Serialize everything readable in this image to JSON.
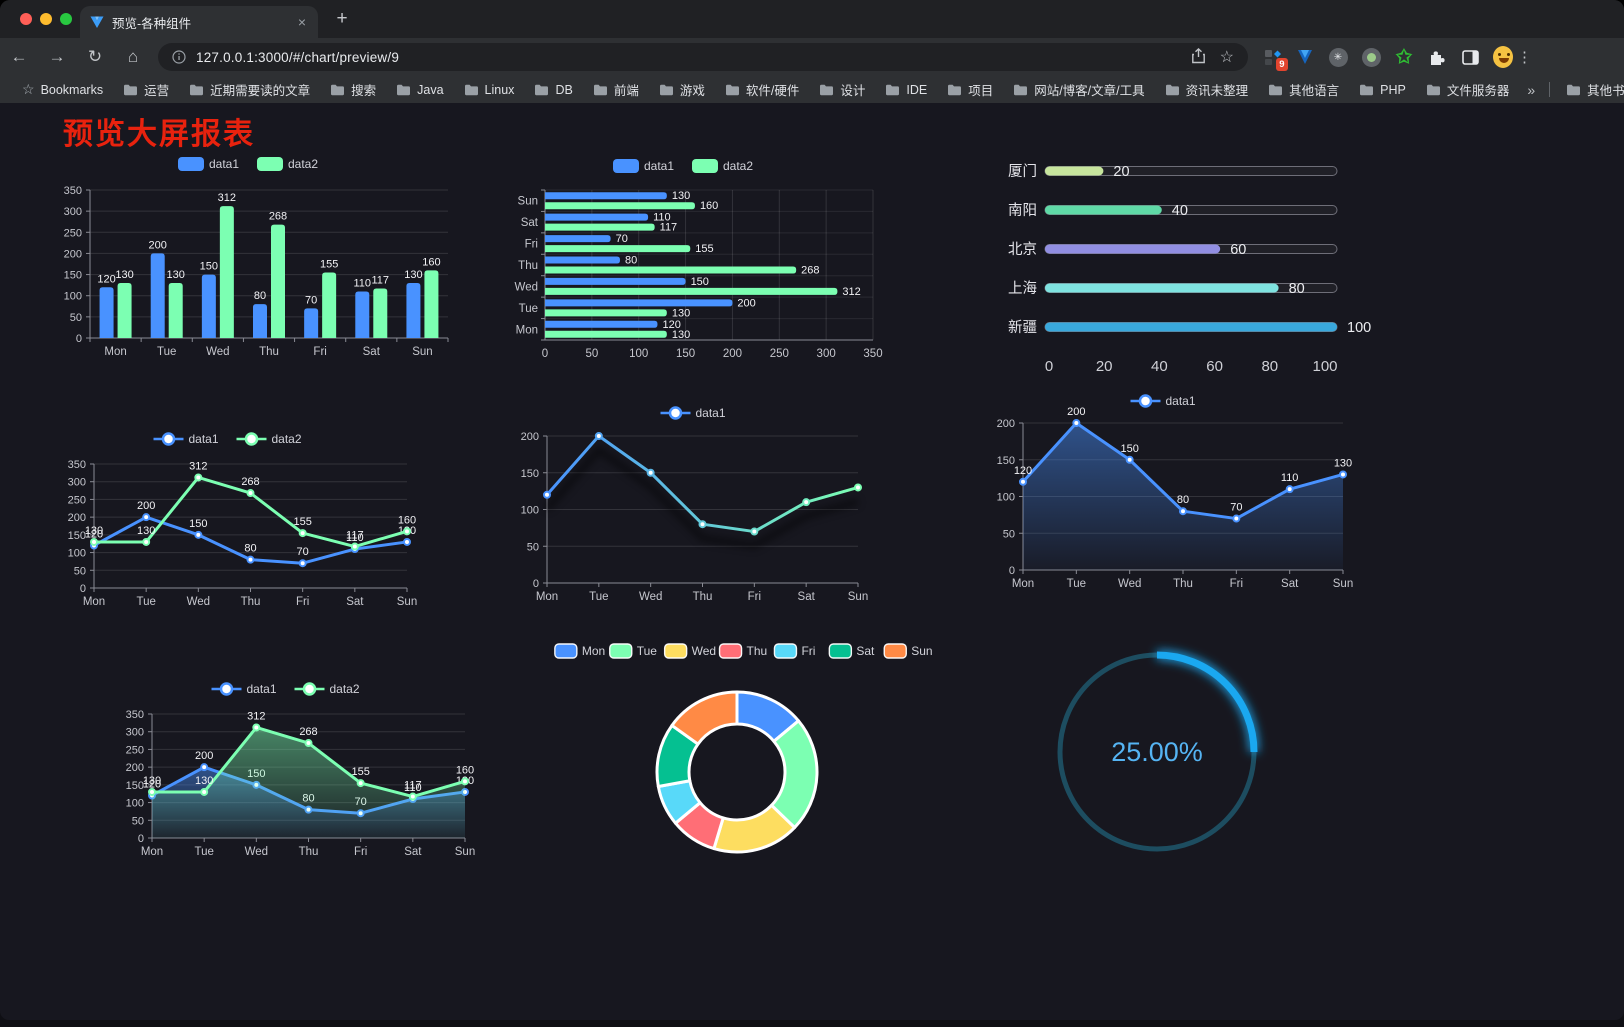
{
  "browser": {
    "traffic_lights": [
      "#ff5f57",
      "#febc2e",
      "#28c840"
    ],
    "tab": {
      "title": "预览-各种组件",
      "close": "×",
      "new_tab": "+"
    },
    "icons": {
      "back": "←",
      "forward": "→",
      "reload": "↻",
      "home": "⌂",
      "info": "i",
      "star": "☆",
      "dots": "⋮"
    },
    "address": {
      "url": "127.0.0.1:3000/#/chart/preview/9"
    },
    "extensions_badge": "9",
    "bookmarks_bar": {
      "root_label": "Bookmarks",
      "folders": [
        "运营",
        "近期需要读的文章",
        "搜索",
        "Java",
        "Linux",
        "DB",
        "前端",
        "游戏",
        "软件/硬件",
        "设计",
        "IDE",
        "项目",
        "网站/博客/文章/工具",
        "资讯未整理",
        "其他语言",
        "PHP",
        "文件服务器"
      ],
      "overflow": "»",
      "other_bookmarks": "其他书签"
    }
  },
  "page": {
    "title": "预览大屏报表",
    "title_color": "#e8220e",
    "background": "#17171f"
  },
  "chart_data": [
    {
      "id": "grouped-bar",
      "type": "bar",
      "categories": [
        "Mon",
        "Tue",
        "Wed",
        "Thu",
        "Fri",
        "Sat",
        "Sun"
      ],
      "series": [
        {
          "name": "data1",
          "color": "#4992ff",
          "values": [
            120,
            200,
            150,
            80,
            70,
            110,
            130
          ]
        },
        {
          "name": "data2",
          "color": "#7cffb2",
          "values": [
            130,
            130,
            312,
            268,
            155,
            117,
            160
          ]
        }
      ],
      "ylim": [
        0,
        350
      ],
      "ystep": 50,
      "legend_position": "top",
      "grid": true,
      "point_labels": true
    },
    {
      "id": "horizontal-bar",
      "type": "hbar",
      "categories": [
        "Mon",
        "Tue",
        "Wed",
        "Thu",
        "Fri",
        "Sat",
        "Sun"
      ],
      "display_order_top_to_bottom": [
        "Sun",
        "Sat",
        "Fri",
        "Thu",
        "Wed",
        "Tue",
        "Mon"
      ],
      "series": [
        {
          "name": "data1",
          "color": "#4992ff",
          "values": [
            120,
            200,
            150,
            80,
            70,
            110,
            130
          ]
        },
        {
          "name": "data2",
          "color": "#7cffb2",
          "values": [
            130,
            130,
            312,
            268,
            155,
            117,
            160
          ]
        }
      ],
      "xlim": [
        0,
        350
      ],
      "xstep": 50,
      "legend_position": "top",
      "grid": true,
      "point_labels": true
    },
    {
      "id": "city-progress",
      "type": "progress",
      "rows": [
        {
          "label": "厦门",
          "value": 20,
          "color": "#c7e59d"
        },
        {
          "label": "南阳",
          "value": 40,
          "color": "#5fd9a6"
        },
        {
          "label": "北京",
          "value": 60,
          "color": "#918ee2"
        },
        {
          "label": "上海",
          "value": 80,
          "color": "#7fe3e0"
        },
        {
          "label": "新疆",
          "value": 100,
          "color": "#39a8dc"
        }
      ],
      "xlim": [
        0,
        100
      ],
      "xticks": [
        0,
        20,
        40,
        60,
        80,
        100
      ]
    },
    {
      "id": "line-two-series",
      "type": "line",
      "categories": [
        "Mon",
        "Tue",
        "Wed",
        "Thu",
        "Fri",
        "Sat",
        "Sun"
      ],
      "series": [
        {
          "name": "data1",
          "color": "#4992ff",
          "values": [
            120,
            200,
            150,
            80,
            70,
            110,
            130
          ]
        },
        {
          "name": "data2",
          "color": "#7cffb2",
          "values": [
            130,
            130,
            312,
            268,
            155,
            117,
            160
          ]
        }
      ],
      "ylim": [
        0,
        350
      ],
      "ystep": 50,
      "point_labels": true,
      "legend_position": "top"
    },
    {
      "id": "line-gradient",
      "type": "line",
      "categories": [
        "Mon",
        "Tue",
        "Wed",
        "Thu",
        "Fri",
        "Sat",
        "Sun"
      ],
      "series": [
        {
          "name": "data1",
          "color": "#4992ff",
          "color_end": "#7cffb2",
          "values": [
            120,
            200,
            150,
            80,
            70,
            110,
            130
          ]
        }
      ],
      "ylim": [
        0,
        200
      ],
      "ystep": 50,
      "point_labels": false,
      "gradient_stroke": true,
      "legend_position": "top"
    },
    {
      "id": "line-area",
      "type": "line",
      "categories": [
        "Mon",
        "Tue",
        "Wed",
        "Thu",
        "Fri",
        "Sat",
        "Sun"
      ],
      "series": [
        {
          "name": "data1",
          "color": "#4992ff",
          "values": [
            120,
            200,
            150,
            80,
            70,
            110,
            130
          ],
          "area": true
        }
      ],
      "ylim": [
        0,
        200
      ],
      "ystep": 50,
      "point_labels": true,
      "legend_position": "top"
    },
    {
      "id": "line-two-series-area",
      "type": "line",
      "categories": [
        "Mon",
        "Tue",
        "Wed",
        "Thu",
        "Fri",
        "Sat",
        "Sun"
      ],
      "series": [
        {
          "name": "data1",
          "color": "#4992ff",
          "values": [
            120,
            200,
            150,
            80,
            70,
            110,
            130
          ],
          "area": true
        },
        {
          "name": "data2",
          "color": "#7cffb2",
          "values": [
            130,
            130,
            312,
            268,
            155,
            117,
            160
          ],
          "area": true
        }
      ],
      "ylim": [
        0,
        350
      ],
      "ystep": 50,
      "point_labels": true,
      "legend_position": "top"
    },
    {
      "id": "weekday-donut",
      "type": "donut",
      "categories": [
        "Mon",
        "Tue",
        "Wed",
        "Thu",
        "Fri",
        "Sat",
        "Sun"
      ],
      "values": [
        120,
        200,
        150,
        80,
        70,
        110,
        130
      ],
      "colors": [
        "#4992ff",
        "#7cffb2",
        "#fddd60",
        "#ff6e76",
        "#58d9f9",
        "#05c091",
        "#ff8a45"
      ],
      "legend_position": "top"
    },
    {
      "id": "percent-gauge",
      "type": "gauge",
      "value_label": "25.00%",
      "percent": 25,
      "color": "#1aa8f0",
      "track_color": "#1d4d60",
      "text_color": "#55b4f3"
    }
  ]
}
